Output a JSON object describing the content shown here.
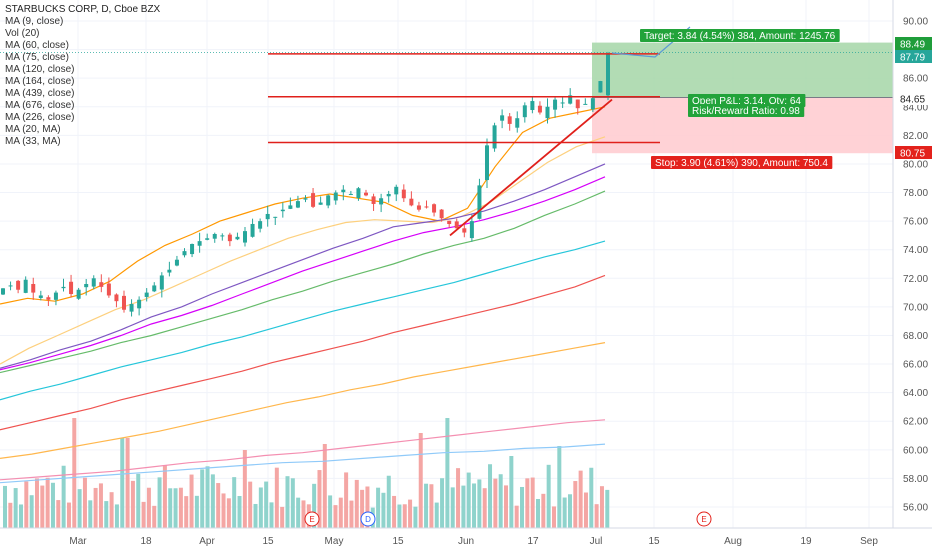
{
  "legend": {
    "title": "STARBUCKS CORP, D, Cboe BZX",
    "studies": [
      "Vol (20)",
      "MA (60, close)",
      "MA (75, close)",
      "MA (120, close)",
      "MA (164, close)",
      "MA (439, close)",
      "MA (676, close)",
      "MA (226, close)",
      "MA (20, MA)",
      "MA (33, MA)"
    ],
    "first_study": "MA (9, close)"
  },
  "colors": {
    "up": "#26a69a",
    "down": "#ef5350",
    "vol_up": "#8fd3cc",
    "vol_down": "#f4a6a4",
    "target_zone": "#a5d6a7",
    "stop_zone": "#ffcdd2",
    "trendline": "#e0201b",
    "ma_fast": "#ff9800",
    "ma_slow": "#fdd07e",
    "ma_purple": "#7e57c2",
    "ma_violet": "#d500f9",
    "ma_green": "#66bb6a",
    "ma_teal": "#26c6da",
    "ma_red": "#ef5350",
    "ma_orange": "#ffb74d",
    "ma_pink": "#f48fb1",
    "ma_blue": "#90caf9"
  },
  "chart_data": {
    "type": "candlestick",
    "title": "STARBUCKS CORP, D, Cboe BZX",
    "y_axis": {
      "ticks": [
        56,
        58,
        60,
        62,
        64,
        66,
        68,
        70,
        72,
        74,
        76,
        78,
        80,
        82,
        84,
        86,
        88,
        90
      ],
      "range": [
        55,
        91
      ]
    },
    "x_axis": {
      "ticks": [
        "Mar",
        "18",
        "Apr",
        "15",
        "May",
        "15",
        "Jun",
        "17",
        "Jul",
        "15",
        "Aug",
        "19",
        "Sep"
      ]
    },
    "price_labels": [
      {
        "text": "88.49",
        "kind": "target"
      },
      {
        "text": "87.79",
        "kind": "current"
      },
      {
        "text": "84.65",
        "kind": "entry"
      },
      {
        "text": "80.75",
        "kind": "stop"
      }
    ],
    "position": {
      "entry": 84.65,
      "target": 88.49,
      "stop": 80.75,
      "target_label": "Target: 3.84 (4.54%) 384, Amount: 1245.76",
      "pnl_label": "Open P&L: 3.14, Qty: 64",
      "rr_label": "Risk/Reward Ratio: 0.98",
      "stop_label": "Stop: 3.90 (4.61%) 390, Amount: 750.4"
    },
    "horizontal_lines": [
      87.7,
      84.7,
      81.5
    ],
    "event_markers": [
      {
        "text": "E",
        "position": "late-april"
      },
      {
        "text": "D",
        "position": "mid-may"
      },
      {
        "text": "E",
        "position": "late-july"
      }
    ],
    "moving_averages": [
      {
        "color": "ma_fast",
        "values": [
          70.2,
          70.6,
          70.4,
          70.9,
          71.8,
          73.2,
          74.3,
          75.1,
          76.0,
          76.6,
          77.2,
          77.6,
          77.9,
          77.6,
          77.3,
          76.4,
          76.0,
          76.9,
          79.8,
          82.2,
          83.2,
          83.6,
          84.0
        ]
      },
      {
        "color": "ma_slow",
        "values": [
          66.0,
          67.1,
          68.0,
          68.9,
          69.8,
          70.5,
          71.4,
          72.3,
          73.2,
          74.0,
          74.8,
          75.4,
          75.9,
          76.1,
          76.0,
          75.9,
          76.3,
          77.3,
          78.7,
          80.1,
          81.2,
          81.9
        ]
      },
      {
        "color": "ma_purple",
        "values": [
          65.7,
          66.3,
          67.0,
          67.6,
          68.4,
          69.3,
          70.0,
          70.9,
          71.7,
          72.5,
          73.3,
          74.1,
          74.8,
          75.6,
          75.9,
          76.2,
          76.7,
          77.4,
          78.2,
          79.1,
          80.0
        ]
      },
      {
        "color": "ma_violet",
        "values": [
          65.6,
          66.1,
          66.7,
          67.3,
          68.0,
          68.8,
          69.4,
          70.1,
          70.9,
          71.7,
          72.5,
          73.2,
          73.9,
          74.6,
          75.2,
          75.6,
          76.1,
          76.7,
          77.4,
          78.2,
          79.1
        ]
      },
      {
        "color": "ma_green",
        "values": [
          65.4,
          65.9,
          66.4,
          66.9,
          67.5,
          68.0,
          68.6,
          69.2,
          69.8,
          70.5,
          71.1,
          71.8,
          72.4,
          73.0,
          73.7,
          74.3,
          74.8,
          75.5,
          76.4,
          77.2,
          78.1
        ]
      },
      {
        "color": "ma_teal",
        "values": [
          63.5,
          64.1,
          64.6,
          65.2,
          65.8,
          66.3,
          66.8,
          67.4,
          67.9,
          68.5,
          69.1,
          69.7,
          70.2,
          70.7,
          71.2,
          71.7,
          72.3,
          72.9,
          73.5,
          74.0,
          74.6
        ]
      },
      {
        "color": "ma_red",
        "values": [
          61.4,
          61.9,
          62.4,
          62.9,
          63.5,
          64.0,
          64.5,
          65.0,
          65.5,
          66.1,
          66.6,
          67.1,
          67.6,
          68.2,
          68.7,
          69.2,
          69.7,
          70.2,
          70.8,
          71.4,
          72.2
        ]
      },
      {
        "color": "ma_orange",
        "values": [
          59.4,
          59.7,
          60.1,
          60.5,
          60.9,
          61.3,
          61.8,
          62.3,
          62.8,
          63.3,
          63.7,
          64.2,
          64.6,
          65.1,
          65.5,
          65.9,
          66.3,
          66.7,
          67.1,
          67.5
        ]
      },
      {
        "color": "ma_pink",
        "values": [
          57.9,
          58.1,
          58.3,
          58.5,
          58.8,
          59.1,
          59.3,
          59.6,
          59.8,
          60.1,
          60.4,
          60.7,
          61.0,
          61.3,
          61.6,
          61.9,
          62.1
        ]
      },
      {
        "color": "ma_blue",
        "values": [
          57.7,
          57.9,
          58.1,
          58.3,
          58.5,
          58.7,
          58.9,
          59.1,
          59.2,
          59.4,
          59.6,
          59.8,
          59.9,
          60.1,
          60.2,
          60.4
        ]
      }
    ]
  }
}
